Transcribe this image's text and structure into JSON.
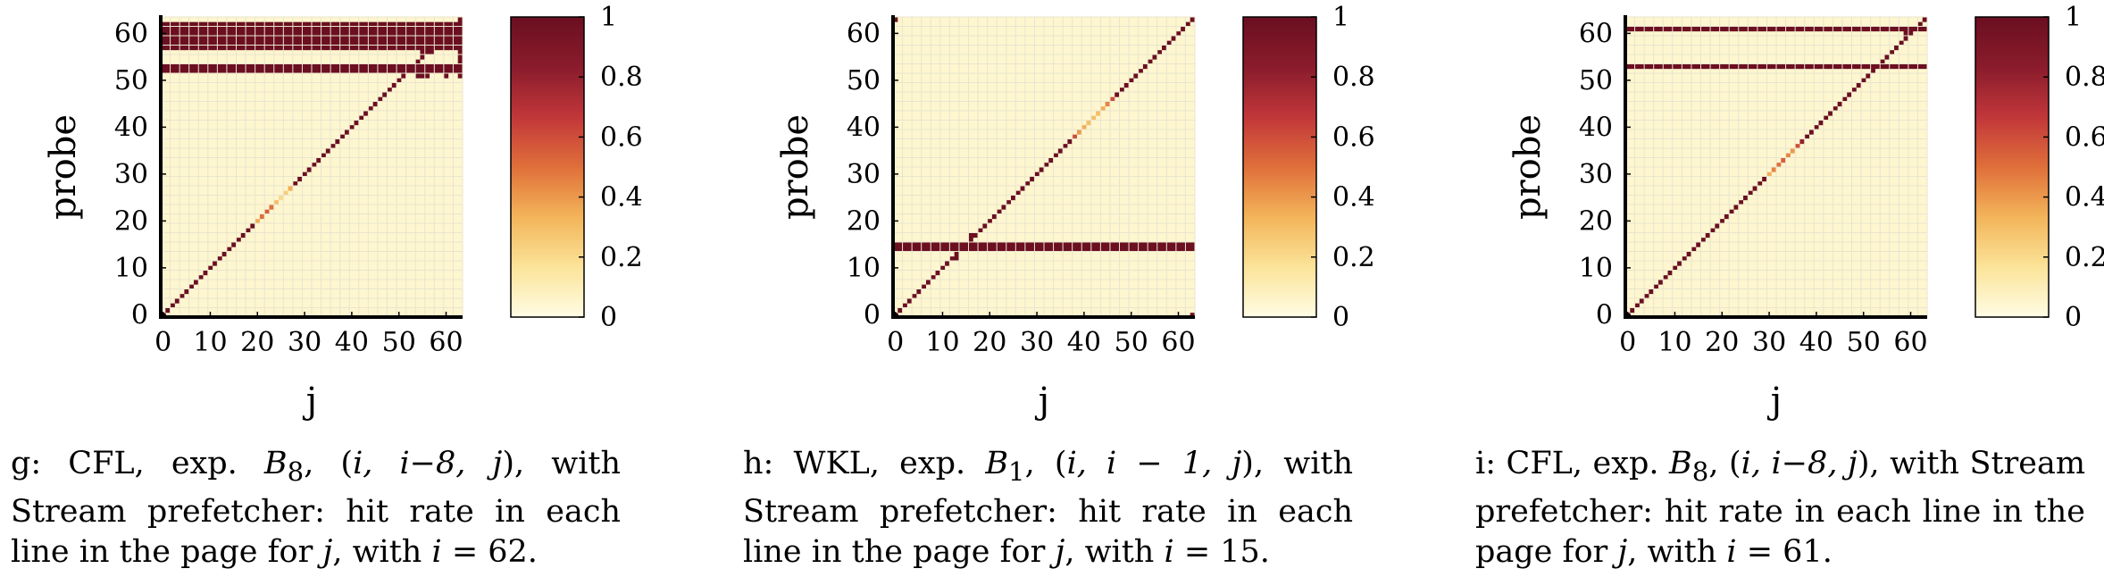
{
  "chart_data": [
    {
      "type": "heatmap",
      "title": "",
      "xlabel": "j",
      "ylabel": "probe",
      "xlim": [
        0,
        63
      ],
      "ylim": [
        0,
        63
      ],
      "xticks": [
        "0",
        "10",
        "20",
        "30",
        "40",
        "50",
        "60"
      ],
      "yticks": [
        "0",
        "10",
        "20",
        "30",
        "40",
        "50",
        "60"
      ],
      "colorbar": {
        "ticks": [
          "0",
          "0.2",
          "0.4",
          "0.6",
          "0.8",
          "1"
        ],
        "range": [
          0,
          1
        ],
        "colors": [
          "#fffde6",
          "#fbe49a",
          "#f3b55a",
          "#e0703a",
          "#c2373a",
          "#8a1c2c",
          "#6b0f21"
        ]
      },
      "background_value": 0.05,
      "diagonal": {
        "value": 1,
        "weak": [
          [
            20,
            0.35
          ],
          [
            21,
            0.5
          ],
          [
            22,
            0.55
          ],
          [
            23,
            0.5
          ],
          [
            24,
            0.3
          ],
          [
            25,
            0.2
          ],
          [
            26,
            0.25
          ],
          [
            27,
            0.35
          ]
        ]
      },
      "full_rows": [
        {
          "y": 52,
          "value": 1,
          "xmin": 0,
          "xmax": 63
        },
        {
          "y": 53,
          "value": 1,
          "xmin": 0,
          "xmax": 63
        },
        {
          "y": 57,
          "value": 1,
          "xmin": 0,
          "xmax": 63
        },
        {
          "y": 58,
          "value": 1,
          "xmin": 0,
          "xmax": 63
        },
        {
          "y": 59,
          "value": 1,
          "xmin": 0,
          "xmax": 63
        },
        {
          "y": 60,
          "value": 1,
          "xmin": 0,
          "xmax": 63
        },
        {
          "y": 61,
          "value": 1,
          "xmin": 0,
          "xmax": 63
        },
        {
          "y": 62,
          "value": 1,
          "xmin": 0,
          "xmax": 63
        }
      ],
      "cells": [
        [
          63,
          54,
          1
        ],
        [
          63,
          55,
          1
        ],
        [
          63,
          56,
          1
        ],
        [
          63,
          63,
          1
        ],
        [
          55,
          56,
          1
        ],
        [
          56,
          56,
          1
        ],
        [
          57,
          56,
          1
        ],
        [
          54,
          51,
          1
        ],
        [
          55,
          51,
          1
        ],
        [
          56,
          51,
          1
        ],
        [
          60,
          51,
          1
        ],
        [
          63,
          51,
          1
        ]
      ],
      "caption": {
        "label": "g:",
        "part1": " CFL, exp. ",
        "math1": "B",
        "sub1": "8",
        "part2": ", (",
        "math2": "i, i−8, j",
        "part3": "), with Stream prefetcher: hit rate in each line in the page for ",
        "math3": "j",
        "part4": ", with ",
        "math4": "i",
        "part5": " = 62."
      }
    },
    {
      "type": "heatmap",
      "title": "",
      "xlabel": "j",
      "ylabel": "probe",
      "xlim": [
        0,
        63
      ],
      "ylim": [
        0,
        63
      ],
      "xticks": [
        "0",
        "10",
        "20",
        "30",
        "40",
        "50",
        "60"
      ],
      "yticks": [
        "0",
        "10",
        "20",
        "30",
        "40",
        "50",
        "60"
      ],
      "colorbar": {
        "ticks": [
          "0",
          "0.2",
          "0.4",
          "0.6",
          "0.8",
          "1"
        ],
        "range": [
          0,
          1
        ],
        "colors": [
          "#fffde6",
          "#fbe49a",
          "#f3b55a",
          "#e0703a",
          "#c2373a",
          "#8a1c2c",
          "#6b0f21"
        ]
      },
      "background_value": 0.05,
      "diagonal": {
        "value": 1,
        "weak": [
          [
            38,
            0.6
          ],
          [
            39,
            0.4
          ],
          [
            40,
            0.35
          ],
          [
            41,
            0.3
          ],
          [
            42,
            0.3
          ],
          [
            43,
            0.3
          ],
          [
            44,
            0.35
          ],
          [
            45,
            0.45
          ],
          [
            46,
            0.6
          ]
        ]
      },
      "full_rows": [
        {
          "y": 14,
          "value": 1,
          "xmin": 0,
          "xmax": 63
        },
        {
          "y": 15,
          "value": 1,
          "xmin": 0,
          "xmax": 63
        }
      ],
      "cells": [
        [
          0,
          63,
          1
        ],
        [
          63,
          0,
          1
        ],
        [
          13,
          12,
          1
        ],
        [
          13,
          13,
          1
        ],
        [
          16,
          16,
          1
        ],
        [
          16,
          17,
          1
        ]
      ],
      "caption": {
        "label": "h:",
        "part1": " WKL, exp. ",
        "math1": "B",
        "sub1": "1",
        "part2": ", (",
        "math2": "i, i − 1, j",
        "part3": "), with Stream prefetcher: hit rate in each line in the page for ",
        "math3": "j",
        "part4": ", with ",
        "math4": "i",
        "part5": " = 15."
      }
    },
    {
      "type": "heatmap",
      "title": "",
      "xlabel": "j",
      "ylabel": "probe",
      "xlim": [
        0,
        63
      ],
      "ylim": [
        0,
        63
      ],
      "xticks": [
        "0",
        "10",
        "20",
        "30",
        "40",
        "50",
        "60"
      ],
      "yticks": [
        "0",
        "10",
        "20",
        "30",
        "40",
        "50",
        "60"
      ],
      "colorbar": {
        "ticks": [
          "0",
          "0.2",
          "0.4",
          "0.6",
          "0.8",
          "1"
        ],
        "range": [
          0,
          1
        ],
        "colors": [
          "#fffde6",
          "#fbe49a",
          "#f3b55a",
          "#e0703a",
          "#c2373a",
          "#8a1c2c",
          "#6b0f21"
        ]
      },
      "background_value": 0.05,
      "diagonal": {
        "value": 1,
        "weak": [
          [
            30,
            0.35
          ],
          [
            31,
            0.45
          ],
          [
            32,
            0.5
          ],
          [
            33,
            0.55
          ],
          [
            34,
            0.45
          ],
          [
            35,
            0.4
          ],
          [
            36,
            0.6
          ],
          [
            37,
            0.8
          ]
        ]
      },
      "full_rows": [
        {
          "y": 53,
          "value": 1,
          "xmin": 0,
          "xmax": 63
        },
        {
          "y": 61,
          "value": 1,
          "xmin": 0,
          "xmax": 63
        }
      ],
      "cells": [
        [
          62,
          62,
          1
        ],
        [
          63,
          63,
          1
        ],
        [
          59,
          60,
          1
        ],
        [
          58,
          58,
          1
        ]
      ],
      "caption": {
        "label": "i:",
        "part1": " CFL, exp. ",
        "math1": "B",
        "sub1": "8",
        "part2": ", (",
        "math2": "i, i−8, j",
        "part3": "), with Stream prefetcher: hit rate in each line in the page for ",
        "math3": "j",
        "part4": ", with ",
        "math4": "i",
        "part5": " = 61."
      }
    }
  ]
}
